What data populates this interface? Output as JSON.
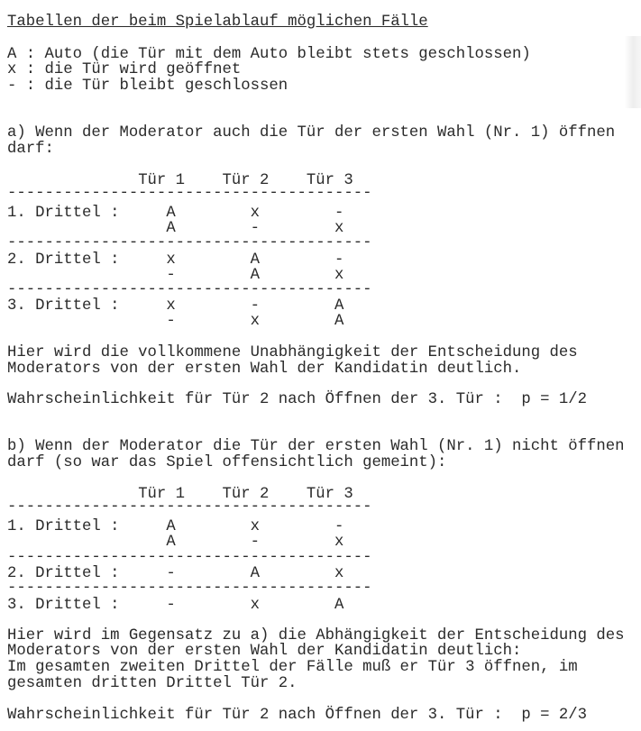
{
  "title": "Tabellen der beim Spielablauf möglichen Fälle",
  "legend": [
    "A : Auto (die Tür mit dem Auto bleibt stets geschlossen)",
    "x : die Tür wird geöffnet",
    "- : die Tür bleibt geschlossen"
  ],
  "section_a": {
    "intro": [
      "a) Wenn der Moderator auch die Tür der ersten Wahl (Nr. 1) öffnen",
      "darf:"
    ],
    "table": {
      "headers": [
        "Tür 1",
        "Tür 2",
        "Tür 3"
      ],
      "groups": [
        {
          "label": "1. Drittel :",
          "rows": [
            [
              "A",
              "x",
              "-"
            ],
            [
              "A",
              "-",
              "x"
            ]
          ]
        },
        {
          "label": "2. Drittel :",
          "rows": [
            [
              "x",
              "A",
              "-"
            ],
            [
              "-",
              "A",
              "x"
            ]
          ]
        },
        {
          "label": "3. Drittel :",
          "rows": [
            [
              "x",
              "-",
              "A"
            ],
            [
              "-",
              "x",
              "A"
            ]
          ]
        }
      ]
    },
    "conclusion": [
      "Hier wird die vollkommene Unabhängigkeit der Entscheidung des",
      "Moderators von der ersten Wahl der Kandidatin deutlich."
    ],
    "probability": "Wahrscheinlichkeit für Tür 2 nach Öffnen der 3. Tür :  p = 1/2"
  },
  "section_b": {
    "intro": [
      "b) Wenn der Moderator die Tür der ersten Wahl (Nr. 1) nicht öffnen",
      "darf (so war das Spiel offensichtlich gemeint):"
    ],
    "table": {
      "headers": [
        "Tür 1",
        "Tür 2",
        "Tür 3"
      ],
      "groups": [
        {
          "label": "1. Drittel :",
          "rows": [
            [
              "A",
              "x",
              "-"
            ],
            [
              "A",
              "-",
              "x"
            ]
          ]
        },
        {
          "label": "2. Drittel :",
          "rows": [
            [
              "-",
              "A",
              "x"
            ]
          ]
        },
        {
          "label": "3. Drittel :",
          "rows": [
            [
              "-",
              "x",
              "A"
            ]
          ]
        }
      ]
    },
    "conclusion": [
      "Hier wird im Gegensatz zu a) die Abhängigkeit der Entscheidung des",
      "Moderators von der ersten Wahl der Kandidatin deutlich:",
      "Im gesamten zweiten Drittel der Fälle muß er Tür 3 öffnen, im",
      "gesamten dritten Drittel Tür 2."
    ],
    "probability": "Wahrscheinlichkeit für Tür 2 nach Öffnen der 3. Tür :  p = 2/3"
  }
}
